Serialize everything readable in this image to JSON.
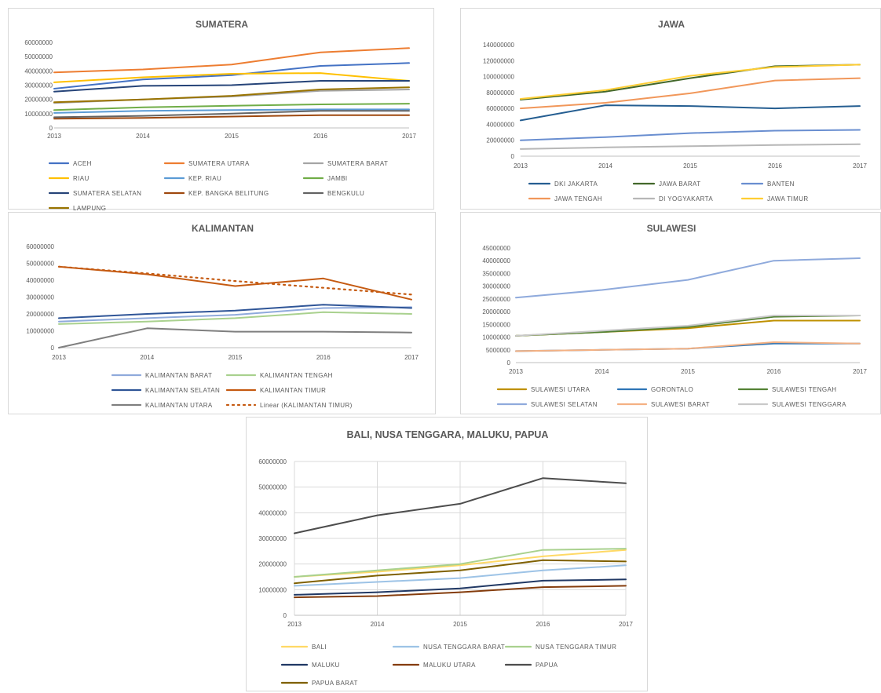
{
  "chart_data": [
    {
      "type": "line",
      "title": "SUMATERA",
      "x": [
        "2013",
        "2014",
        "2015",
        "2016",
        "2017"
      ],
      "ylim": [
        0,
        60000000
      ],
      "yticks": [
        0,
        10000000,
        20000000,
        30000000,
        40000000,
        50000000,
        60000000
      ],
      "grid": false,
      "legend_position": "bottom",
      "series": [
        {
          "name": "ACEH",
          "color": "#4472C4",
          "values": [
            27500000,
            34000000,
            37000000,
            43500000,
            45500000
          ]
        },
        {
          "name": "SUMATERA UTARA",
          "color": "#ED7D31",
          "values": [
            39000000,
            41000000,
            44500000,
            53000000,
            56000000
          ]
        },
        {
          "name": "SUMATERA BARAT",
          "color": "#A5A5A5",
          "values": [
            17500000,
            20000000,
            22000000,
            26000000,
            27000000
          ]
        },
        {
          "name": "RIAU",
          "color": "#FFC000",
          "values": [
            32000000,
            35500000,
            38000000,
            38500000,
            33000000
          ]
        },
        {
          "name": "KEP. RIAU",
          "color": "#5B9BD5",
          "values": [
            10500000,
            12000000,
            12500000,
            13000000,
            13000000
          ]
        },
        {
          "name": "JAMBI",
          "color": "#70AD47",
          "values": [
            12500000,
            14500000,
            15500000,
            16500000,
            17000000
          ]
        },
        {
          "name": "SUMATERA SELATAN",
          "color": "#264478",
          "values": [
            25500000,
            29500000,
            30000000,
            33000000,
            33000000
          ]
        },
        {
          "name": "KEP. BANGKA BELITUNG",
          "color": "#9E480E",
          "values": [
            6500000,
            7000000,
            8000000,
            9000000,
            9000000
          ]
        },
        {
          "name": "BENGKULU",
          "color": "#636363",
          "values": [
            7500000,
            8500000,
            10000000,
            12000000,
            12000000
          ]
        },
        {
          "name": "LAMPUNG",
          "color": "#997300",
          "values": [
            18000000,
            20000000,
            22500000,
            27000000,
            28500000
          ]
        }
      ]
    },
    {
      "type": "line",
      "title": "JAWA",
      "x": [
        "2013",
        "2014",
        "2015",
        "2016",
        "2017"
      ],
      "ylim": [
        0,
        140000000
      ],
      "yticks": [
        0,
        20000000,
        40000000,
        60000000,
        80000000,
        100000000,
        120000000,
        140000000
      ],
      "grid": false,
      "legend_position": "bottom",
      "series": [
        {
          "name": "DKI JAKARTA",
          "color": "#255E91",
          "values": [
            45000000,
            64000000,
            63000000,
            60000000,
            63000000
          ]
        },
        {
          "name": "JAWA BARAT",
          "color": "#43682B",
          "values": [
            71000000,
            81000000,
            98000000,
            113000000,
            115000000
          ]
        },
        {
          "name": "BANTEN",
          "color": "#698ED0",
          "values": [
            20000000,
            24000000,
            29000000,
            32000000,
            33000000
          ]
        },
        {
          "name": "JAWA TENGAH",
          "color": "#F1975A",
          "values": [
            60000000,
            67000000,
            79000000,
            95000000,
            98000000
          ]
        },
        {
          "name": "DI YOGYAKARTA",
          "color": "#B7B7B7",
          "values": [
            9000000,
            11000000,
            12500000,
            14000000,
            15000000
          ]
        },
        {
          "name": "JAWA TIMUR",
          "color": "#FFCD33",
          "values": [
            72000000,
            83000000,
            101000000,
            112000000,
            115000000
          ]
        }
      ]
    },
    {
      "type": "line",
      "title": "KALIMANTAN",
      "x": [
        "2013",
        "2014",
        "2015",
        "2016",
        "2017"
      ],
      "ylim": [
        0,
        60000000
      ],
      "yticks": [
        0,
        10000000,
        20000000,
        30000000,
        40000000,
        50000000,
        60000000
      ],
      "grid": false,
      "legend_position": "bottom",
      "series": [
        {
          "name": "KALIMANTAN BARAT",
          "color": "#8FAADC",
          "values": [
            15500000,
            17500000,
            19500000,
            23500000,
            24000000
          ]
        },
        {
          "name": "KALIMANTAN TENGAH",
          "color": "#A9D18E",
          "values": [
            14000000,
            15500000,
            17500000,
            21000000,
            20000000
          ]
        },
        {
          "name": "KALIMANTAN SELATAN",
          "color": "#2F5597",
          "values": [
            17500000,
            20000000,
            22000000,
            25500000,
            23500000
          ]
        },
        {
          "name": "KALIMANTAN TIMUR",
          "color": "#C55A11",
          "values": [
            48000000,
            43500000,
            36500000,
            41000000,
            28500000
          ]
        },
        {
          "name": "KALIMANTAN UTARA",
          "color": "#7F7F7F",
          "values": [
            0,
            11500000,
            9500000,
            9500000,
            9000000
          ]
        },
        {
          "name": "Linear (KALIMANTAN TIMUR)",
          "color": "#C55A11",
          "dashed": true,
          "values": [
            48000000,
            44000000,
            39500000,
            35500000,
            31500000
          ]
        }
      ]
    },
    {
      "type": "line",
      "title": "SULAWESI",
      "x": [
        "2013",
        "2014",
        "2015",
        "2016",
        "2017"
      ],
      "ylim": [
        0,
        45000000
      ],
      "yticks": [
        0,
        5000000,
        10000000,
        15000000,
        20000000,
        25000000,
        30000000,
        35000000,
        40000000,
        45000000
      ],
      "grid": false,
      "legend_position": "bottom",
      "series": [
        {
          "name": "SULAWESI UTARA",
          "color": "#BF9000",
          "values": [
            10500000,
            12000000,
            13500000,
            16500000,
            16500000
          ]
        },
        {
          "name": "GORONTALO",
          "color": "#2E75B6",
          "values": [
            4500000,
            5000000,
            5500000,
            7500000,
            7500000
          ]
        },
        {
          "name": "SULAWESI TENGAH",
          "color": "#548235",
          "values": [
            10500000,
            12000000,
            14000000,
            18000000,
            18500000
          ]
        },
        {
          "name": "SULAWESI SELATAN",
          "color": "#8FAADC",
          "values": [
            25500000,
            28500000,
            32500000,
            40000000,
            41000000
          ]
        },
        {
          "name": "SULAWESI BARAT",
          "color": "#F4B183",
          "values": [
            4500000,
            5000000,
            5500000,
            8000000,
            7500000
          ]
        },
        {
          "name": "SULAWESI TENGGARA",
          "color": "#C9C9C9",
          "values": [
            10500000,
            12500000,
            14500000,
            18500000,
            18500000
          ]
        }
      ]
    },
    {
      "type": "line",
      "title": "BALI, NUSA TENGGARA, MALUKU, PAPUA",
      "x": [
        "2013",
        "2014",
        "2015",
        "2016",
        "2017"
      ],
      "ylim": [
        0,
        60000000
      ],
      "yticks": [
        0,
        10000000,
        20000000,
        30000000,
        40000000,
        50000000,
        60000000
      ],
      "grid": true,
      "legend_position": "bottom",
      "series": [
        {
          "name": "BALI",
          "color": "#FFD966",
          "values": [
            15000000,
            17000000,
            19500000,
            23000000,
            25500000
          ]
        },
        {
          "name": "NUSA TENGGARA BARAT",
          "color": "#9DC3E6",
          "values": [
            11500000,
            13000000,
            14500000,
            17500000,
            19500000
          ]
        },
        {
          "name": "NUSA TENGGARA TIMUR",
          "color": "#A9D18E",
          "values": [
            15000000,
            17500000,
            20000000,
            25500000,
            26000000
          ]
        },
        {
          "name": "MALUKU",
          "color": "#203864",
          "values": [
            8000000,
            9000000,
            10500000,
            13500000,
            14000000
          ]
        },
        {
          "name": "MALUKU UTARA",
          "color": "#843C0C",
          "values": [
            7000000,
            7500000,
            9000000,
            11000000,
            11500000
          ]
        },
        {
          "name": "PAPUA",
          "color": "#4D4D4D",
          "values": [
            32000000,
            39000000,
            43500000,
            53500000,
            51500000
          ]
        },
        {
          "name": "PAPUA BARAT",
          "color": "#7F6000",
          "values": [
            12500000,
            15500000,
            17500000,
            21500000,
            21000000
          ]
        }
      ]
    }
  ]
}
